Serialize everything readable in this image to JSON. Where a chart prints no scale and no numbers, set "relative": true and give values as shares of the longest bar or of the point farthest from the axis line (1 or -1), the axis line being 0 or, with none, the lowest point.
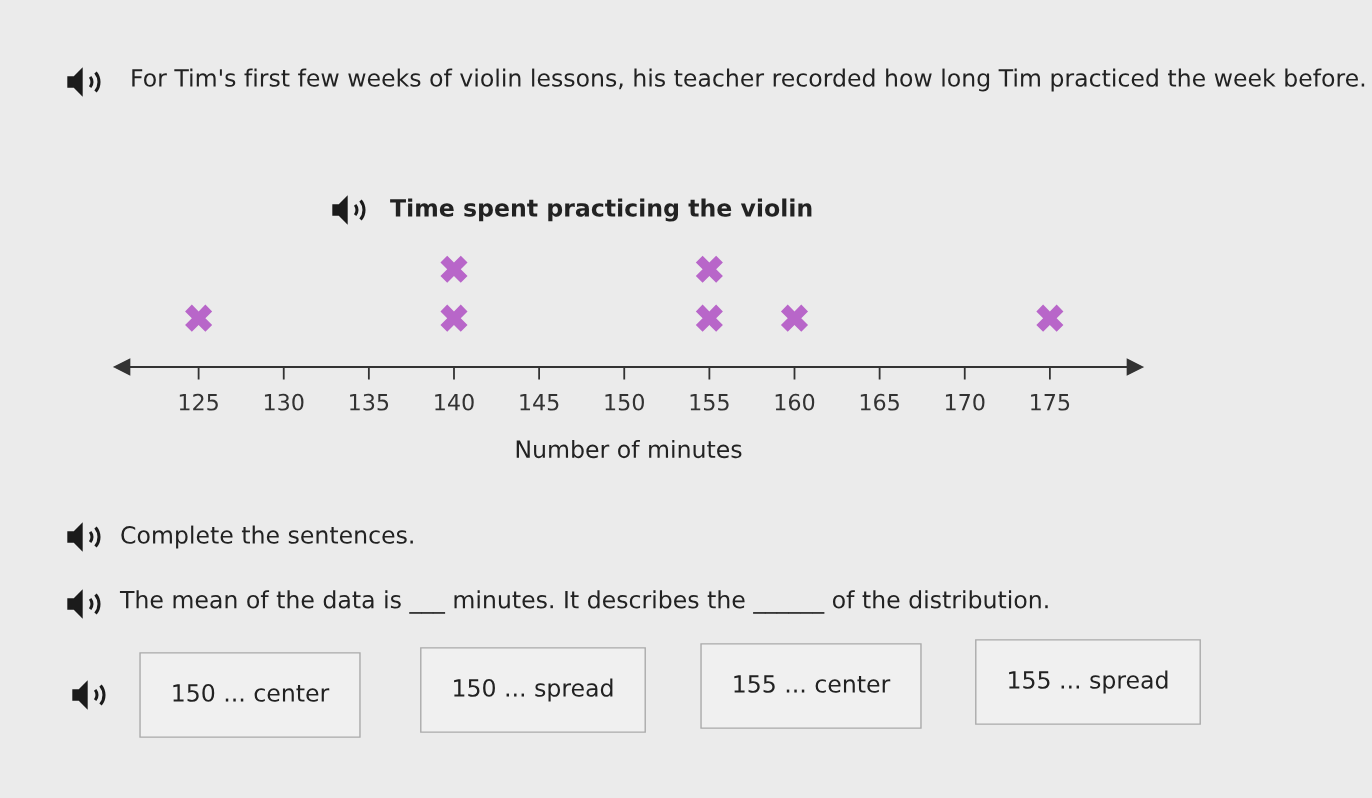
{
  "chart_data": {
    "type": "scatter",
    "title": "Time spent practicing the violin",
    "xlabel": "Number of minutes",
    "x": [
      125,
      140,
      140,
      155,
      155,
      160,
      175
    ],
    "values": [
      0.5,
      0.5,
      1,
      0.5,
      1,
      0.5,
      0.5
    ],
    "color": "#b866c9",
    "marker": "cross",
    "relative": true,
    "xlim": [
      120.5,
      180
    ],
    "xticks": [
      125,
      130,
      135,
      140,
      145,
      150,
      155,
      160,
      165,
      170,
      175
    ],
    "annotations": [
      "For Tim's first few weeks of violin lessons, his teacher recorded how long Tim practiced the week before.",
      "Complete the sentences.",
      "The mean of the data is ___ minutes. It describes the ______ of the distribution.",
      "150 ... center",
      "150 ... spread",
      "155 ... center",
      "155 ... spread"
    ]
  }
}
